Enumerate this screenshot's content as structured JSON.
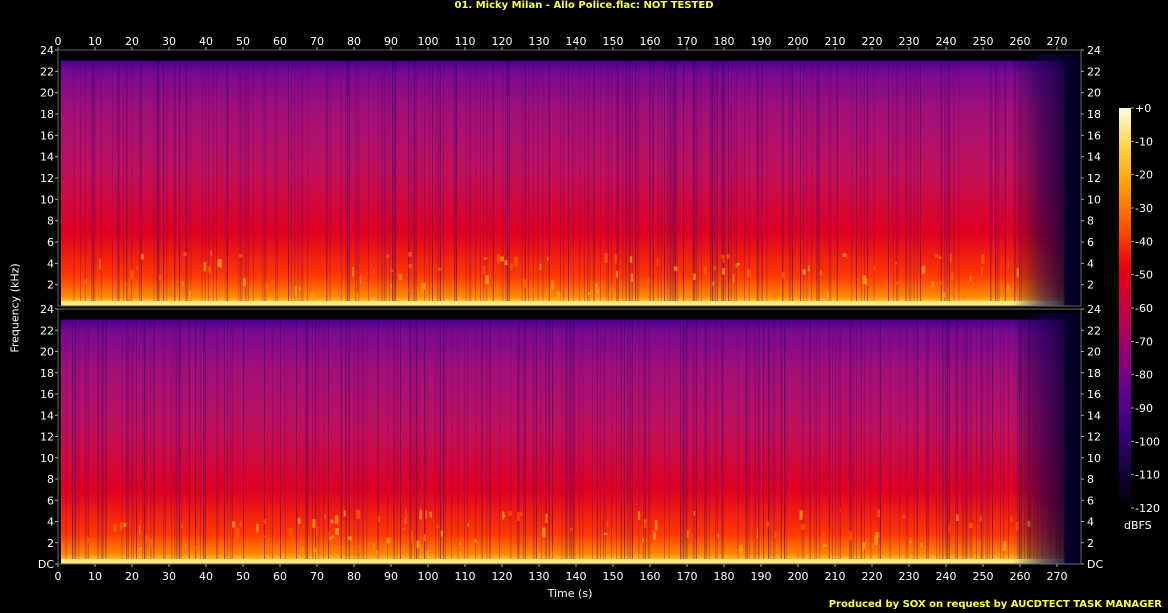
{
  "title": "01. Micky Milan - Allo Police.flac: NOT TESTED",
  "footer": "Produced by SOX on request by AUCDTECT TASK MANAGER",
  "chart_data": {
    "type": "heatmap",
    "title": "01. Micky Milan - Allo Police.flac: NOT TESTED",
    "xlabel": "Time (s)",
    "ylabel": "Frequency (kHz)",
    "colorbar_label": "dBFS",
    "x_ticks": [
      "0",
      "10",
      "20",
      "30",
      "40",
      "50",
      "60",
      "70",
      "80",
      "90",
      "100",
      "110",
      "120",
      "130",
      "140",
      "150",
      "160",
      "170",
      "180",
      "190",
      "200",
      "210",
      "220",
      "230",
      "240",
      "250",
      "260",
      "270"
    ],
    "y_ticks_channel1": [
      "2",
      "4",
      "6",
      "8",
      "10",
      "12",
      "14",
      "16",
      "18",
      "20",
      "22",
      "24"
    ],
    "y_ticks_channel2": [
      "DC",
      "2",
      "4",
      "6",
      "8",
      "10",
      "12",
      "14",
      "16",
      "18",
      "20",
      "22",
      "24"
    ],
    "colorbar_ticks": [
      "+0",
      "-10",
      "-20",
      "-30",
      "-40",
      "-50",
      "-60",
      "-70",
      "-80",
      "-90",
      "-100",
      "-110",
      "-120"
    ],
    "xlim": [
      0,
      279
    ],
    "ylim": [
      0,
      24
    ],
    "channels": 2,
    "approx_upper_frequency_khz": 23,
    "colorscale": [
      "#000000",
      "#1a0040",
      "#3a0080",
      "#6a0090",
      "#9a0070",
      "#c80040",
      "#e80010",
      "#ff5000",
      "#ff9a00",
      "#ffd040",
      "#ffffe0"
    ]
  }
}
